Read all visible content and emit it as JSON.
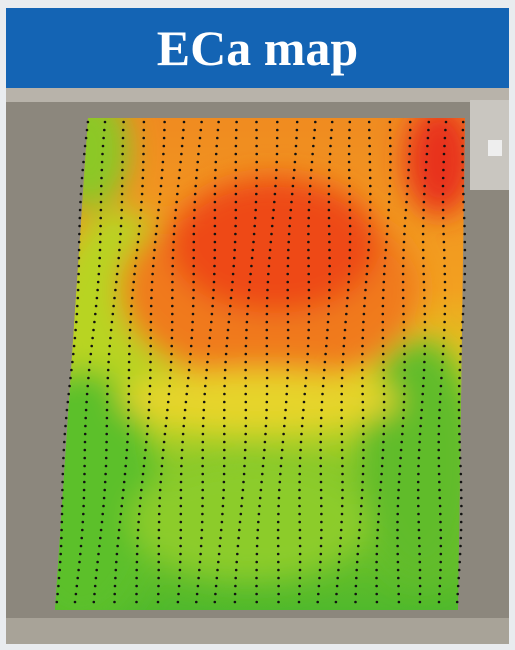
{
  "header": {
    "title": "ECa map"
  }
}
